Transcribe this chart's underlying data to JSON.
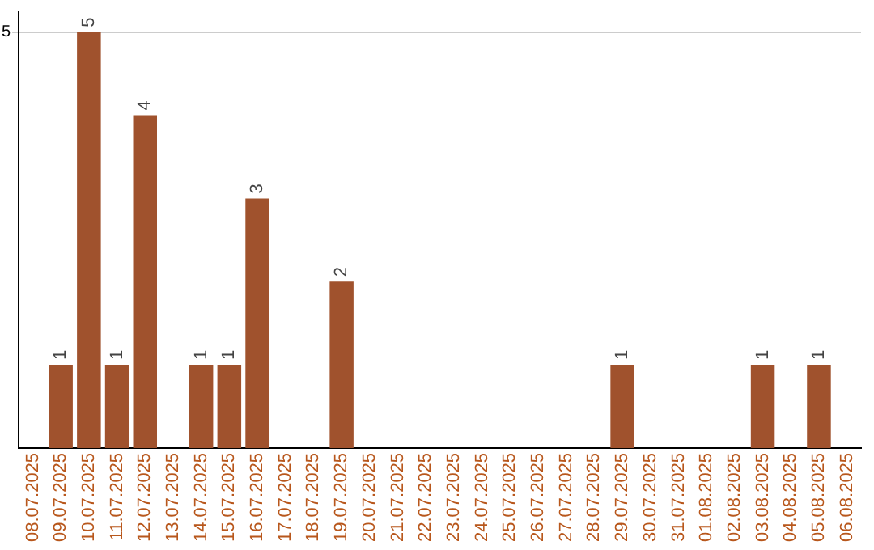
{
  "chart_data": {
    "type": "bar",
    "categories": [
      "08.07.2025",
      "09.07.2025",
      "10.07.2025",
      "11.07.2025",
      "12.07.2025",
      "13.07.2025",
      "14.07.2025",
      "15.07.2025",
      "16.07.2025",
      "17.07.2025",
      "18.07.2025",
      "19.07.2025",
      "20.07.2025",
      "21.07.2025",
      "22.07.2025",
      "23.07.2025",
      "24.07.2025",
      "25.07.2025",
      "26.07.2025",
      "27.07.2025",
      "28.07.2025",
      "29.07.2025",
      "30.07.2025",
      "31.07.2025",
      "01.08.2025",
      "02.08.2025",
      "03.08.2025",
      "04.08.2025",
      "05.08.2025",
      "06.08.2025"
    ],
    "values": [
      0,
      1,
      5,
      1,
      4,
      0,
      1,
      1,
      3,
      0,
      0,
      2,
      0,
      0,
      0,
      0,
      0,
      0,
      0,
      0,
      0,
      1,
      0,
      0,
      0,
      0,
      1,
      0,
      1,
      0
    ],
    "color": "#a0522d",
    "value_labels": [
      null,
      "1",
      "5",
      "1",
      "4",
      null,
      "1",
      "1",
      "3",
      null,
      null,
      "2",
      null,
      null,
      null,
      null,
      null,
      null,
      null,
      null,
      null,
      "1",
      null,
      null,
      null,
      null,
      "1",
      null,
      "1",
      null
    ],
    "ylim": [
      0,
      5.25
    ],
    "yticks": [
      5
    ],
    "grid": "y",
    "legend": false
  }
}
